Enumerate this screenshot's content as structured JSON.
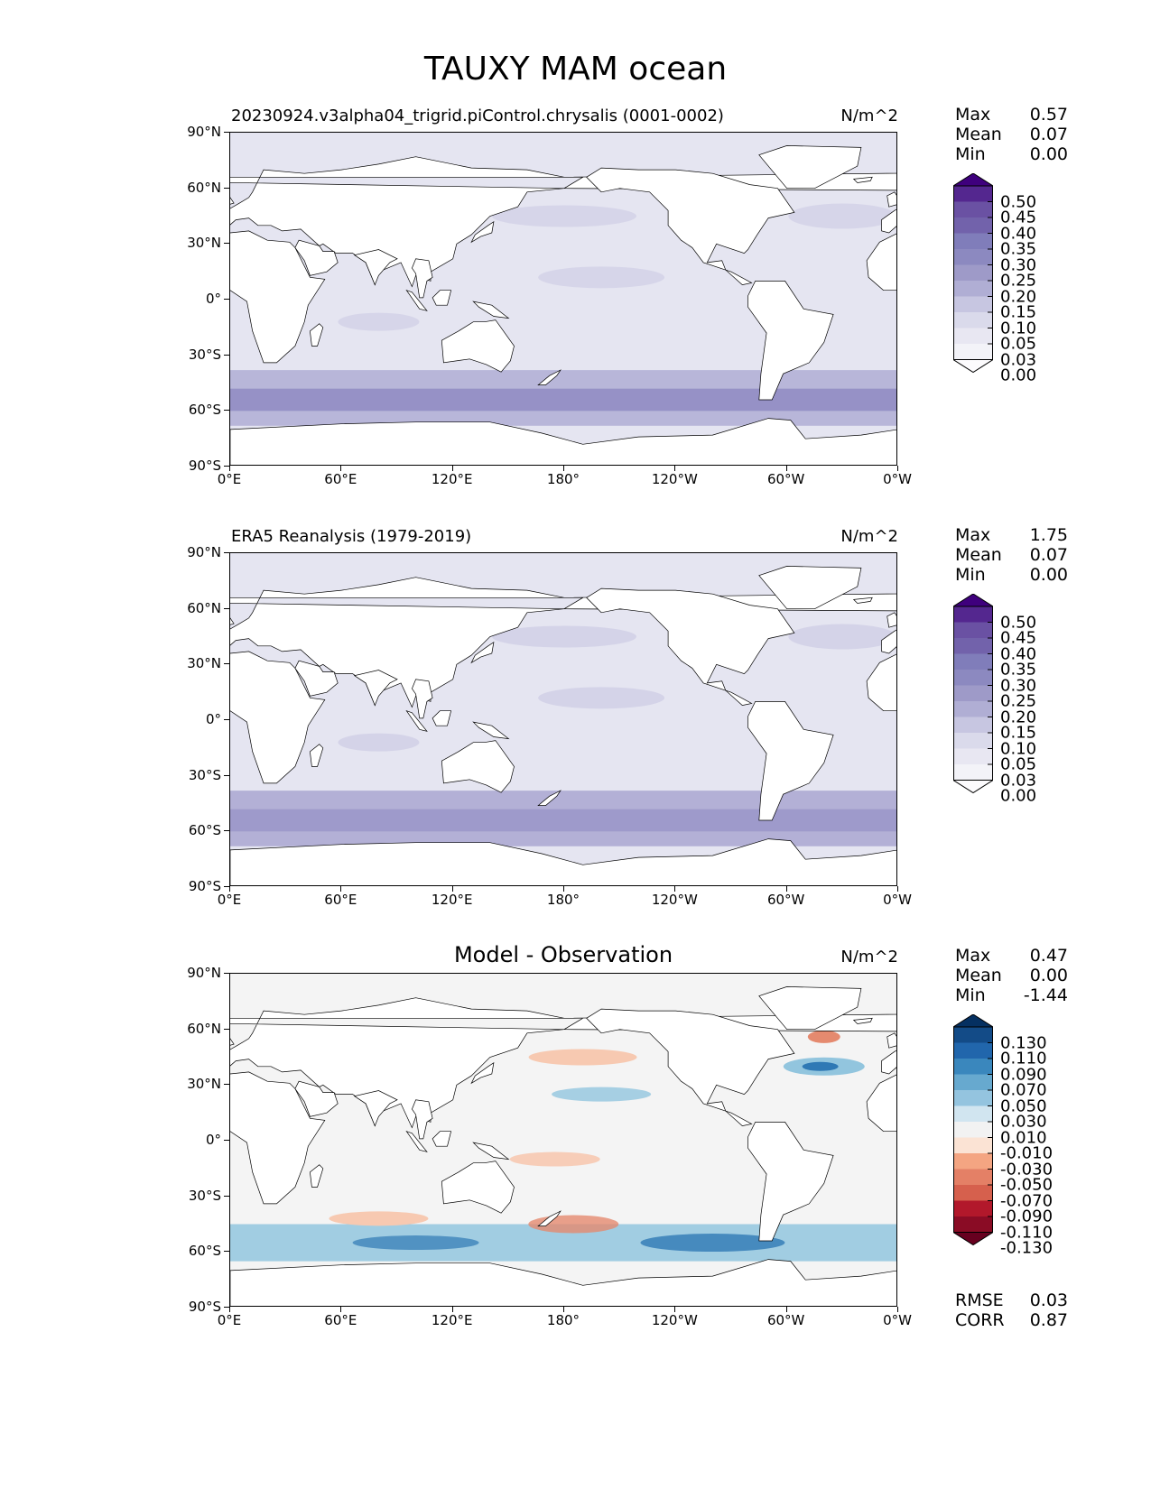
{
  "title": "TAUXY MAM ocean",
  "lat_ticks": [
    "90°N",
    "60°N",
    "30°N",
    "0°",
    "30°S",
    "60°S",
    "90°S"
  ],
  "lon_ticks": [
    "0°E",
    "60°E",
    "120°E",
    "180°",
    "120°W",
    "60°W",
    "0°W"
  ],
  "panels": [
    {
      "title": "20230924.v3alpha04_trigrid.piControl.chrysalis (0001-0002)",
      "title_style": "left",
      "units": "N/m^2",
      "stats": {
        "max_label": "Max",
        "max": "0.57",
        "mean_label": "Mean",
        "mean": "0.07",
        "min_label": "Min",
        "min": "0.00"
      },
      "colorbar": {
        "levels": [
          "0.50",
          "0.45",
          "0.40",
          "0.35",
          "0.30",
          "0.25",
          "0.20",
          "0.15",
          "0.10",
          "0.05",
          "0.03",
          "0.00"
        ],
        "colors": [
          "#3f007d",
          "#54278f",
          "#6a51a3",
          "#7262ab",
          "#807dba",
          "#8c89c0",
          "#9e9ac8",
          "#b0aed4",
          "#c7c6e1",
          "#dadaeb",
          "#e8e7f2",
          "#f3f3f8",
          "#fcfbfd"
        ]
      },
      "map_colors": {
        "ocean": "#e5e5f1",
        "band": "#b8b6d9",
        "band_core": "#8f8bc2",
        "sub": "#d6d5e9"
      }
    },
    {
      "title": "ERA5 Reanalysis (1979-2019)",
      "title_style": "left",
      "units": "N/m^2",
      "stats": {
        "max_label": "Max",
        "max": "1.75",
        "mean_label": "Mean",
        "mean": "0.07",
        "min_label": "Min",
        "min": "0.00"
      },
      "colorbar": {
        "levels": [
          "0.50",
          "0.45",
          "0.40",
          "0.35",
          "0.30",
          "0.25",
          "0.20",
          "0.15",
          "0.10",
          "0.05",
          "0.03",
          "0.00"
        ],
        "colors": [
          "#3f007d",
          "#54278f",
          "#6a51a3",
          "#7262ab",
          "#807dba",
          "#8c89c0",
          "#9e9ac8",
          "#b0aed4",
          "#c7c6e1",
          "#dadaeb",
          "#e8e7f2",
          "#f3f3f8",
          "#fcfbfd"
        ]
      },
      "map_colors": {
        "ocean": "#e5e5f1",
        "band": "#b3b0d6",
        "band_core": "#9a96c9",
        "sub": "#d4d3e8"
      }
    },
    {
      "title": "Model - Observation",
      "title_style": "center",
      "units": "N/m^2",
      "stats": {
        "max_label": "Max",
        "max": "0.47",
        "mean_label": "Mean",
        "mean": "0.00",
        "min_label": "Min",
        "min": "-1.44"
      },
      "colorbar": {
        "levels": [
          "0.130",
          "0.110",
          "0.090",
          "0.070",
          "0.050",
          "0.030",
          "0.010",
          "-0.010",
          "-0.030",
          "-0.050",
          "-0.070",
          "-0.090",
          "-0.110",
          "-0.130"
        ],
        "colors": [
          "#053061",
          "#134b87",
          "#2166ac",
          "#3a87bd",
          "#67a9cf",
          "#94c4df",
          "#d1e5f0",
          "#f2f2f2",
          "#fbe3d4",
          "#f4a582",
          "#e48066",
          "#d6604d",
          "#b2182b",
          "#8a0c25",
          "#67001f"
        ]
      },
      "extra": {
        "rmse_label": "RMSE",
        "rmse": "0.03",
        "corr_label": "CORR",
        "corr": "0.87"
      },
      "map_colors": {
        "ocean": "#f4f4f4",
        "pos": "#92c5de",
        "pos_core": "#2f79b5",
        "neg": "#f7c9b1",
        "neg_core": "#e58a6f"
      }
    }
  ]
}
